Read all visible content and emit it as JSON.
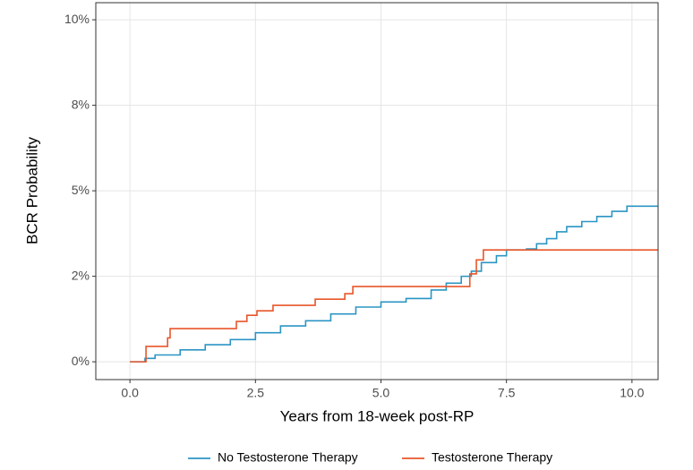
{
  "chart_data": {
    "type": "step",
    "x_label": "Years from 18-week post-RP",
    "y_label": "BCR Probability",
    "xlim": [
      -0.68,
      10.52
    ],
    "ylim": [
      -0.52,
      10.5
    ],
    "xticks": [
      {
        "value": 0,
        "label": "0.0"
      },
      2.5,
      {
        "value": 5,
        "label": "5.0"
      },
      7.5,
      {
        "value": 10,
        "label": "10.0"
      }
    ],
    "yticks": [
      {
        "value": 0,
        "label": "0%"
      },
      {
        "value": 2.5,
        "label": "2%"
      },
      {
        "value": 5,
        "label": "5%"
      },
      {
        "value": 7.5,
        "label": "8%"
      },
      {
        "value": 10,
        "label": "10%"
      }
    ],
    "grid": true,
    "legend": "bottom",
    "series": [
      {
        "name": "No Testosterone Therapy",
        "color": "#2b95c4",
        "x": [
          0,
          0.3,
          0.5,
          1.0,
          1.5,
          2.0,
          2.5,
          3.0,
          3.5,
          4.0,
          4.5,
          5.0,
          5.5,
          6.0,
          6.3,
          6.6,
          6.8,
          7.0,
          7.3,
          7.5,
          7.9,
          8.1,
          8.3,
          8.5,
          8.7,
          9.0,
          9.3,
          9.6,
          9.9,
          10.52
        ],
        "values": [
          0,
          0.1,
          0.2,
          0.35,
          0.5,
          0.65,
          0.85,
          1.05,
          1.2,
          1.4,
          1.6,
          1.75,
          1.85,
          2.1,
          2.3,
          2.5,
          2.65,
          2.9,
          3.1,
          3.27,
          3.3,
          3.45,
          3.6,
          3.8,
          3.95,
          4.1,
          4.25,
          4.4,
          4.55,
          4.55
        ]
      },
      {
        "name": "Testosterone Therapy",
        "color": "#e8562a",
        "x": [
          0,
          0.32,
          0.75,
          0.8,
          2.12,
          2.33,
          2.53,
          2.85,
          3.69,
          4.28,
          4.44,
          6.77,
          6.9,
          7.04,
          10.52
        ],
        "values": [
          0,
          0.45,
          0.7,
          0.97,
          1.18,
          1.36,
          1.49,
          1.65,
          1.83,
          1.99,
          2.2,
          2.57,
          2.98,
          3.27,
          3.27
        ]
      }
    ]
  }
}
